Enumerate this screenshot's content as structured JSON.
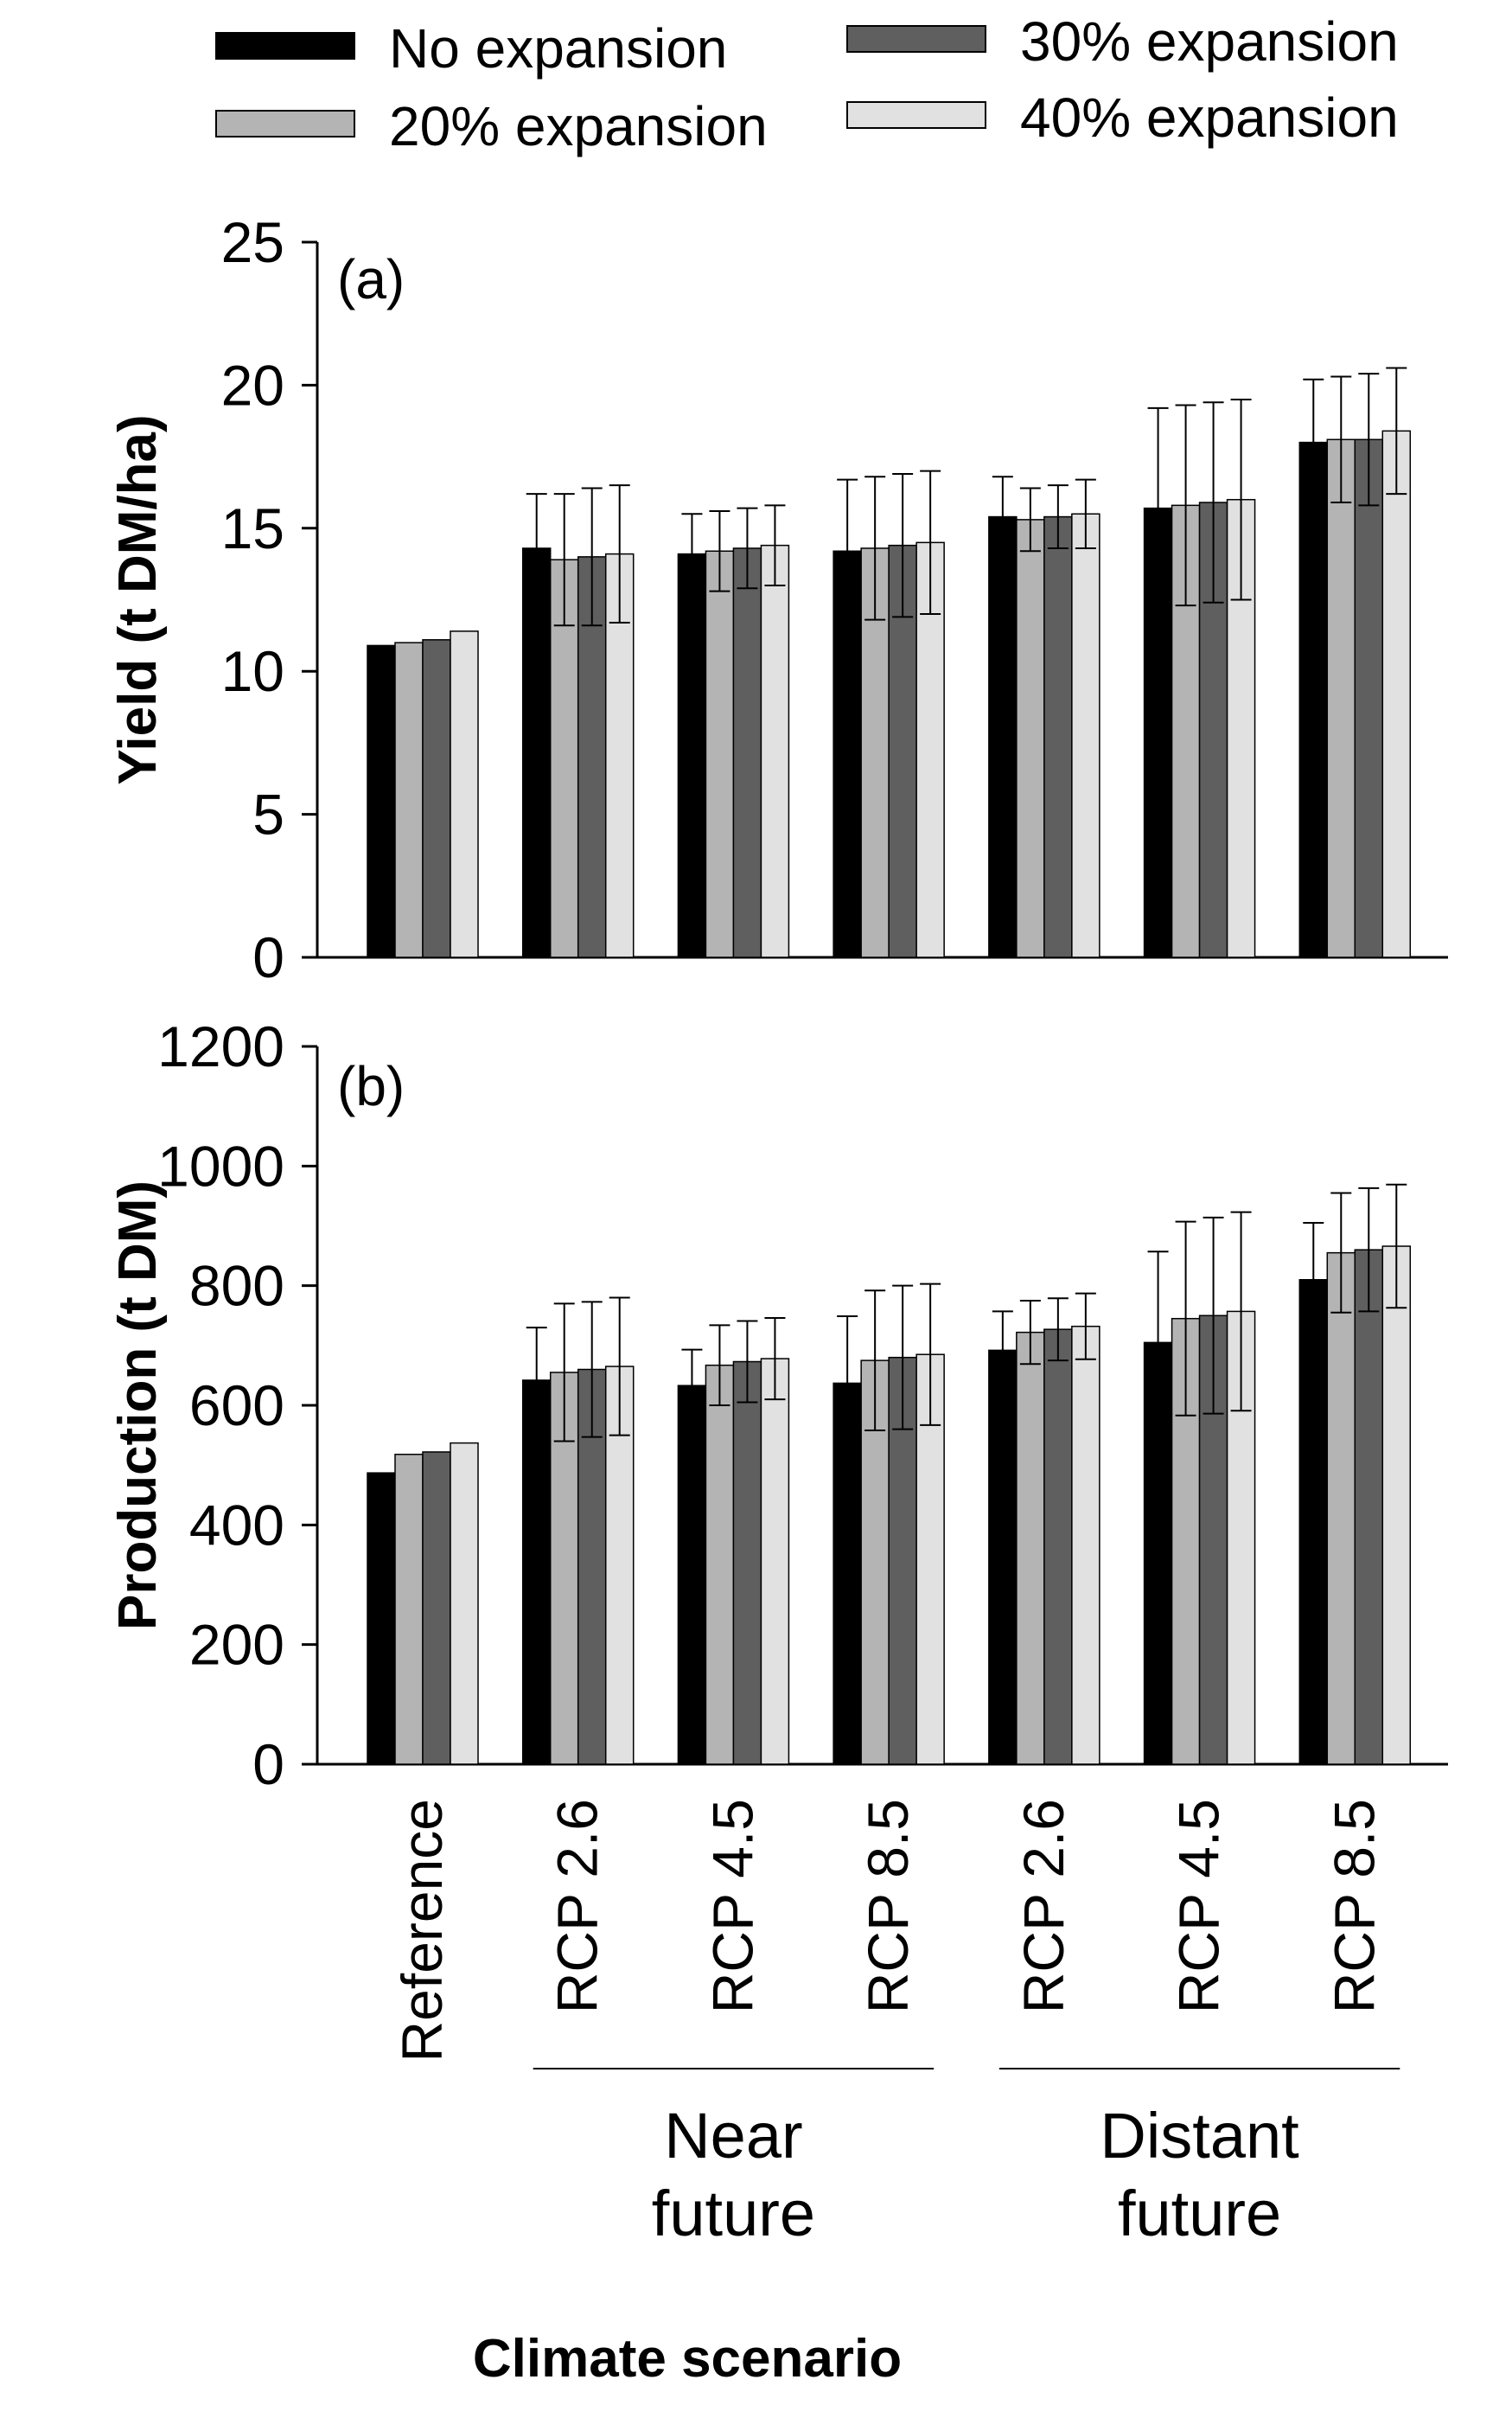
{
  "chart_data": {
    "type": "bar",
    "xlabel": "Climate scenario",
    "categories": [
      "Reference",
      "RCP 2.6",
      "RCP 4.5",
      "RCP 8.5",
      "RCP 2.6",
      "RCP 4.5",
      "RCP 8.5"
    ],
    "category_groups": [
      {
        "label_lines": [
          "Near",
          "future"
        ],
        "categories": [
          1,
          2,
          3
        ]
      },
      {
        "label_lines": [
          "Distant",
          "future"
        ],
        "categories": [
          4,
          5,
          6
        ]
      }
    ],
    "legend": {
      "position": "top",
      "entries": [
        {
          "name": "No expansion",
          "color": "#000000"
        },
        {
          "name": "20% expansion",
          "color": "#b4b4b4"
        },
        {
          "name": "30% expansion",
          "color": "#5f5f5f"
        },
        {
          "name": "40% expansion",
          "color": "#e1e1e1"
        }
      ]
    },
    "panels": [
      {
        "label": "(a)",
        "ylabel": "Yield (t DM/ha)",
        "ylim": [
          0,
          25
        ],
        "yticks": [
          0,
          5,
          10,
          15,
          20,
          25
        ],
        "series": [
          {
            "name": "No expansion",
            "values": [
              10.9,
              14.3,
              14.1,
              14.2,
              15.4,
              15.7,
              18.0
            ],
            "errors": [
              null,
              1.9,
              1.4,
              2.5,
              1.4,
              3.5,
              2.2
            ]
          },
          {
            "name": "20% expansion",
            "values": [
              11.0,
              13.9,
              14.2,
              14.3,
              15.3,
              15.8,
              18.1
            ],
            "errors": [
              null,
              2.3,
              1.4,
              2.5,
              1.1,
              3.5,
              2.2
            ]
          },
          {
            "name": "30% expansion",
            "values": [
              11.1,
              14.0,
              14.3,
              14.4,
              15.4,
              15.9,
              18.1
            ],
            "errors": [
              null,
              2.4,
              1.4,
              2.5,
              1.1,
              3.5,
              2.3
            ]
          },
          {
            "name": "40% expansion",
            "values": [
              11.4,
              14.1,
              14.4,
              14.5,
              15.5,
              16.0,
              18.4
            ],
            "errors": [
              null,
              2.4,
              1.4,
              2.5,
              1.2,
              3.5,
              2.2
            ]
          }
        ]
      },
      {
        "label": "(b)",
        "ylabel": "Production (t DM)",
        "ylim": [
          0,
          1200
        ],
        "yticks": [
          0,
          200,
          400,
          600,
          800,
          1000,
          1200
        ],
        "series": [
          {
            "name": "No expansion",
            "values": [
              487,
              642,
              633,
              637,
              692,
              705,
              810
            ],
            "errors": [
              null,
              88,
              60,
              112,
              65,
              152,
              95
            ]
          },
          {
            "name": "20% expansion",
            "values": [
              518,
              655,
              667,
              675,
              722,
              745,
              855
            ],
            "errors": [
              null,
              115,
              67,
              117,
              53,
              162,
              100
            ]
          },
          {
            "name": "30% expansion",
            "values": [
              522,
              660,
              673,
              680,
              727,
              750,
              860
            ],
            "errors": [
              null,
              113,
              68,
              120,
              52,
              164,
              103
            ]
          },
          {
            "name": "40% expansion",
            "values": [
              537,
              665,
              678,
              685,
              732,
              757,
              866
            ],
            "errors": [
              null,
              115,
              68,
              118,
              55,
              166,
              103
            ]
          }
        ]
      }
    ]
  }
}
